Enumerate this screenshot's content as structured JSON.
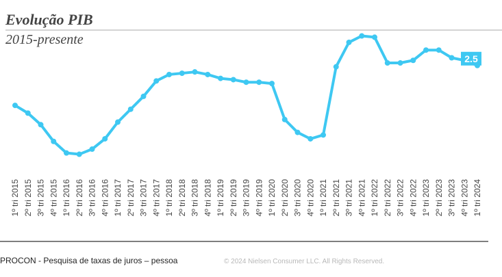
{
  "chart_data": {
    "type": "line",
    "title": "Evolução PIB",
    "subtitle": "2015-presente",
    "categories": [
      "1º tri 2015",
      "2º tri 2015",
      "3º tri 2015",
      "4º tri 2015",
      "1º tri 2016",
      "2º tri 2016",
      "3º tri 2016",
      "4º tri 2016",
      "1º tri 2017",
      "2º tri 2017",
      "3º tri 2017",
      "4º tri 2017",
      "1º tri 2018",
      "2º tri 2018",
      "3º tri 2018",
      "4º tri 2018",
      "1º tri 2019",
      "2º tri 2019",
      "3º tri 2019",
      "4º tri 2019",
      "1º tri 2020",
      "2º tri 2020",
      "3º tri 2020",
      "4º tri 2020",
      "1º tri 2021",
      "2º tri 2021",
      "3º tri 2021",
      "4º tri 2021",
      "1º tri 2022",
      "2º tri 2022",
      "3º tri 2022",
      "4º tri 2022",
      "1º tri 2023",
      "2º tri 2023",
      "3º tri 2023",
      "4º tri 2023",
      "1º tri 2024"
    ],
    "values": [
      -0.6,
      -1.2,
      -2.1,
      -3.4,
      -4.3,
      -4.4,
      -4.0,
      -3.2,
      -1.9,
      -0.9,
      0.1,
      1.3,
      1.8,
      1.9,
      2.0,
      1.8,
      1.5,
      1.4,
      1.2,
      1.2,
      1.1,
      -1.7,
      -2.7,
      -3.2,
      -2.9,
      2.4,
      4.3,
      4.8,
      4.7,
      2.7,
      2.7,
      2.9,
      3.7,
      3.7,
      3.1,
      2.9,
      2.5
    ],
    "value_labels": [
      null,
      null,
      null,
      null,
      null,
      null,
      null,
      null,
      null,
      null,
      null,
      null,
      null,
      null,
      null,
      null,
      null,
      null,
      null,
      null,
      null,
      null,
      null,
      null,
      null,
      null,
      null,
      null,
      null,
      null,
      null,
      null,
      null,
      null,
      null,
      null,
      "2.5"
    ],
    "color": "#3ec8f2",
    "ylim": [
      -5.7,
      5.2
    ]
  },
  "footer": {
    "source": "PROCON - Pesquisa de taxas de juros – pessoa",
    "copyright": "© 2024 Nielsen Consumer LLC. All Rights Reserved."
  }
}
